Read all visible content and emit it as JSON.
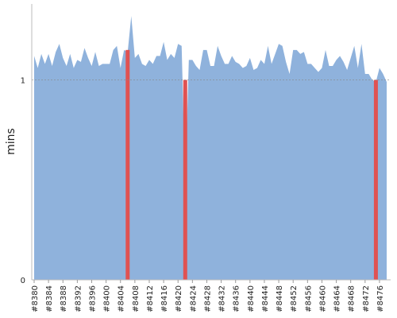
{
  "chart_data": {
    "type": "area",
    "ylabel": "mins",
    "x": [
      8380,
      8381,
      8382,
      8383,
      8384,
      8385,
      8386,
      8387,
      8388,
      8389,
      8390,
      8391,
      8392,
      8393,
      8394,
      8395,
      8396,
      8397,
      8398,
      8399,
      8400,
      8401,
      8402,
      8403,
      8404,
      8405,
      8406,
      8407,
      8408,
      8409,
      8410,
      8411,
      8412,
      8413,
      8414,
      8415,
      8416,
      8417,
      8418,
      8419,
      8420,
      8421,
      8422,
      8423,
      8424,
      8425,
      8426,
      8427,
      8428,
      8429,
      8430,
      8431,
      8432,
      8433,
      8434,
      8435,
      8436,
      8437,
      8438,
      8439,
      8440,
      8441,
      8442,
      8443,
      8444,
      8445,
      8446,
      8447,
      8448,
      8449,
      8450,
      8451,
      8452,
      8453,
      8454,
      8455,
      8456,
      8457,
      8458,
      8459,
      8460,
      8461,
      8462,
      8463,
      8464,
      8465,
      8466,
      8467,
      8468,
      8469,
      8470,
      8471,
      8472,
      8473,
      8474,
      8475,
      8476,
      8477,
      8478
    ],
    "series": [
      {
        "color": "#8fb2dc",
        "values": [
          1.12,
          1.06,
          1.13,
          1.08,
          1.13,
          1.07,
          1.14,
          1.18,
          1.11,
          1.07,
          1.13,
          1.06,
          1.1,
          1.09,
          1.16,
          1.11,
          1.07,
          1.14,
          1.07,
          1.08,
          1.08,
          1.08,
          1.15,
          1.17,
          1.06,
          1.15,
          1.14,
          1.32,
          1.11,
          1.13,
          1.08,
          1.07,
          1.1,
          1.08,
          1.12,
          1.12,
          1.19,
          1.1,
          1.13,
          1.11,
          1.18,
          1.17,
          0.48,
          1.1,
          1.1,
          1.07,
          1.05,
          1.15,
          1.15,
          1.07,
          1.07,
          1.17,
          1.12,
          1.08,
          1.08,
          1.12,
          1.09,
          1.08,
          1.06,
          1.07,
          1.11,
          1.05,
          1.06,
          1.1,
          1.08,
          1.17,
          1.08,
          1.13,
          1.18,
          1.17,
          1.09,
          1.03,
          1.15,
          1.15,
          1.13,
          1.14,
          1.08,
          1.08,
          1.06,
          1.04,
          1.06,
          1.15,
          1.07,
          1.07,
          1.1,
          1.12,
          1.09,
          1.05,
          1.11,
          1.17,
          1.06,
          1.18,
          1.03,
          1.03,
          1.0,
          0.99,
          1.06,
          1.03,
          0.99
        ]
      },
      {
        "color": "#e05252",
        "type": "bar",
        "values": [
          null,
          null,
          null,
          null,
          null,
          null,
          null,
          null,
          null,
          null,
          null,
          null,
          null,
          null,
          null,
          null,
          null,
          null,
          null,
          null,
          null,
          null,
          null,
          null,
          null,
          null,
          1.15,
          null,
          null,
          null,
          null,
          null,
          null,
          null,
          null,
          null,
          null,
          null,
          null,
          null,
          null,
          null,
          1.0,
          null,
          null,
          null,
          null,
          null,
          null,
          null,
          null,
          null,
          null,
          null,
          null,
          null,
          null,
          null,
          null,
          null,
          null,
          null,
          null,
          null,
          null,
          null,
          null,
          null,
          null,
          null,
          null,
          null,
          null,
          null,
          null,
          null,
          null,
          null,
          null,
          null,
          null,
          null,
          null,
          null,
          null,
          null,
          null,
          null,
          null,
          null,
          null,
          null,
          null,
          null,
          null,
          1.0,
          null,
          null,
          null
        ]
      }
    ],
    "xlim": [
      8380,
      8478
    ],
    "xticks": [
      {
        "value": 8380,
        "label": "#8380"
      },
      {
        "value": 8384,
        "label": "#8384"
      },
      {
        "value": 8388,
        "label": "#8388"
      },
      {
        "value": 8392,
        "label": "#8392"
      },
      {
        "value": 8396,
        "label": "#8396"
      },
      {
        "value": 8400,
        "label": "#8400"
      },
      {
        "value": 8404,
        "label": "#8404"
      },
      {
        "value": 8408,
        "label": "#8408"
      },
      {
        "value": 8412,
        "label": "#8412"
      },
      {
        "value": 8416,
        "label": "#8416"
      },
      {
        "value": 8420,
        "label": "#8420"
      },
      {
        "value": 8424,
        "label": "#8424"
      },
      {
        "value": 8428,
        "label": "#8428"
      },
      {
        "value": 8432,
        "label": "#8432"
      },
      {
        "value": 8436,
        "label": "#8436"
      },
      {
        "value": 8440,
        "label": "#8440"
      },
      {
        "value": 8444,
        "label": "#8444"
      },
      {
        "value": 8448,
        "label": "#8448"
      },
      {
        "value": 8452,
        "label": "#8452"
      },
      {
        "value": 8456,
        "label": "#8456"
      },
      {
        "value": 8460,
        "label": "#8460"
      },
      {
        "value": 8464,
        "label": "#8464"
      },
      {
        "value": 8468,
        "label": "#8468"
      },
      {
        "value": 8472,
        "label": "#8472"
      },
      {
        "value": 8476,
        "label": "#8476"
      }
    ],
    "ylim": [
      0,
      1.38
    ],
    "yticks": [
      0,
      1
    ],
    "grid": true
  }
}
